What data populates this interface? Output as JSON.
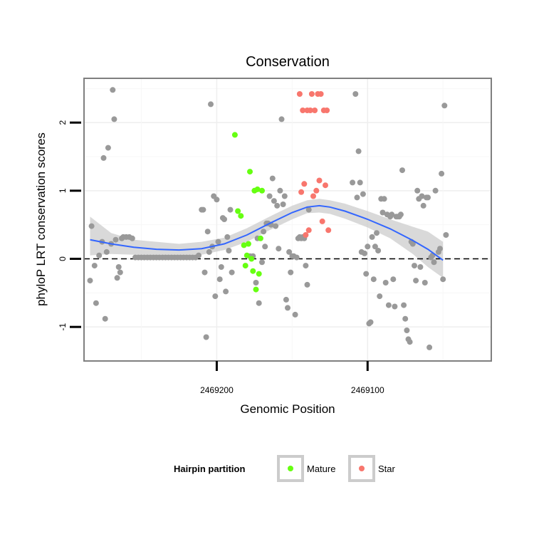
{
  "chart_data": {
    "type": "scatter",
    "title": "Conservation",
    "xlabel": "Genomic Position",
    "ylabel": "phyloP LRT conservation scores",
    "x_reversed": true,
    "xlim": [
      2469288,
      2469018
    ],
    "ylim": [
      -1.5,
      2.65
    ],
    "x_ticks": [
      {
        "value": 2469200,
        "label": "2469200"
      },
      {
        "value": 2469100,
        "label": "2469100"
      }
    ],
    "y_ticks": [
      {
        "value": -1,
        "label": "-1"
      },
      {
        "value": 0,
        "label": "0"
      },
      {
        "value": 1,
        "label": "1"
      },
      {
        "value": 2,
        "label": "2"
      }
    ],
    "grid": true,
    "reference_line": {
      "y": 0,
      "style": "dashed"
    },
    "legend": {
      "title": "Hairpin partition",
      "position": "bottom",
      "entries": [
        {
          "label": "Mature",
          "color": "#66ff11"
        },
        {
          "label": "Star",
          "color": "#f8766d"
        }
      ]
    },
    "colors": {
      "other": "#999999",
      "mature": "#66ff11",
      "star": "#f8766d",
      "smooth": "#3366ff",
      "band": "#cccccc"
    },
    "series": [
      {
        "key": "other",
        "points": [
          [
            2469284,
            -0.32
          ],
          [
            2469283,
            0.48
          ],
          [
            2469281,
            -0.1
          ],
          [
            2469280,
            -0.65
          ],
          [
            2469278,
            0.05
          ],
          [
            2469276,
            0.25
          ],
          [
            2469275,
            1.48
          ],
          [
            2469274,
            -0.88
          ],
          [
            2469273,
            0.1
          ],
          [
            2469272,
            1.63
          ],
          [
            2469270,
            0.22
          ],
          [
            2469269,
            2.48
          ],
          [
            2469268,
            2.05
          ],
          [
            2469267,
            0.28
          ],
          [
            2469266,
            -0.28
          ],
          [
            2469265,
            -0.12
          ],
          [
            2469264,
            -0.2
          ],
          [
            2469263,
            0.3
          ],
          [
            2469262,
            0.32
          ],
          [
            2469260,
            0.32
          ],
          [
            2469258,
            0.32
          ],
          [
            2469256,
            0.3
          ],
          [
            2469254,
            0.02
          ],
          [
            2469252,
            0.02
          ],
          [
            2469250,
            0.02
          ],
          [
            2469248,
            0.02
          ],
          [
            2469246,
            0.02
          ],
          [
            2469244,
            0.02
          ],
          [
            2469242,
            0.02
          ],
          [
            2469240,
            0.02
          ],
          [
            2469238,
            0.02
          ],
          [
            2469236,
            0.02
          ],
          [
            2469234,
            0.02
          ],
          [
            2469232,
            0.02
          ],
          [
            2469230,
            0.02
          ],
          [
            2469228,
            0.02
          ],
          [
            2469226,
            0.02
          ],
          [
            2469224,
            0.02
          ],
          [
            2469222,
            0.02
          ],
          [
            2469220,
            0.02
          ],
          [
            2469218,
            0.02
          ],
          [
            2469216,
            0.02
          ],
          [
            2469214,
            0.02
          ],
          [
            2469212,
            0.05
          ],
          [
            2469210,
            0.72
          ],
          [
            2469209,
            0.72
          ],
          [
            2469208,
            -0.2
          ],
          [
            2469207,
            -1.15
          ],
          [
            2469206,
            0.4
          ],
          [
            2469205,
            0.1
          ],
          [
            2469204,
            2.27
          ],
          [
            2469203,
            0.18
          ],
          [
            2469202,
            0.92
          ],
          [
            2469201,
            -0.55
          ],
          [
            2469200,
            0.87
          ],
          [
            2469199,
            0.25
          ],
          [
            2469198,
            -0.3
          ],
          [
            2469197,
            -0.12
          ],
          [
            2469196,
            0.6
          ],
          [
            2469195,
            0.58
          ],
          [
            2469194,
            -0.48
          ],
          [
            2469193,
            0.32
          ],
          [
            2469192,
            0.12
          ],
          [
            2469191,
            0.72
          ],
          [
            2469190,
            -0.2
          ],
          [
            2469178,
            0.04
          ],
          [
            2469176,
            0.04
          ],
          [
            2469174,
            -0.35
          ],
          [
            2469173,
            0.3
          ],
          [
            2469172,
            -0.65
          ],
          [
            2469170,
            -0.05
          ],
          [
            2469169,
            0.4
          ],
          [
            2469168,
            0.18
          ],
          [
            2469167,
            0.52
          ],
          [
            2469166,
            0.52
          ],
          [
            2469165,
            0.92
          ],
          [
            2469164,
            0.5
          ],
          [
            2469163,
            1.18
          ],
          [
            2469162,
            0.85
          ],
          [
            2469161,
            0.48
          ],
          [
            2469160,
            0.78
          ],
          [
            2469159,
            0.15
          ],
          [
            2469158,
            1.0
          ],
          [
            2469157,
            2.05
          ],
          [
            2469156,
            0.8
          ],
          [
            2469155,
            0.92
          ],
          [
            2469154,
            -0.6
          ],
          [
            2469153,
            -0.72
          ],
          [
            2469152,
            0.1
          ],
          [
            2469151,
            -0.2
          ],
          [
            2469150,
            0.04
          ],
          [
            2469149,
            0.04
          ],
          [
            2469148,
            -0.82
          ],
          [
            2469147,
            0.02
          ],
          [
            2469146,
            0.3
          ],
          [
            2469145,
            0.32
          ],
          [
            2469144,
            0.3
          ],
          [
            2469143,
            0.32
          ],
          [
            2469142,
            0.3
          ],
          [
            2469141,
            -0.1
          ],
          [
            2469140,
            -0.38
          ],
          [
            2469139,
            0.72
          ],
          [
            2469110,
            1.12
          ],
          [
            2469108,
            2.42
          ],
          [
            2469107,
            0.9
          ],
          [
            2469106,
            1.58
          ],
          [
            2469105,
            1.12
          ],
          [
            2469104,
            0.1
          ],
          [
            2469103,
            0.95
          ],
          [
            2469102,
            0.08
          ],
          [
            2469101,
            -0.22
          ],
          [
            2469100,
            0.18
          ],
          [
            2469099,
            -0.95
          ],
          [
            2469098,
            -0.93
          ],
          [
            2469097,
            0.32
          ],
          [
            2469096,
            -0.3
          ],
          [
            2469095,
            0.18
          ],
          [
            2469094,
            0.38
          ],
          [
            2469093,
            0.12
          ],
          [
            2469092,
            -0.55
          ],
          [
            2469091,
            0.88
          ],
          [
            2469090,
            0.68
          ],
          [
            2469089,
            0.88
          ],
          [
            2469088,
            -0.35
          ],
          [
            2469087,
            0.65
          ],
          [
            2469086,
            -0.68
          ],
          [
            2469085,
            0.62
          ],
          [
            2469084,
            0.65
          ],
          [
            2469083,
            -0.3
          ],
          [
            2469082,
            -0.7
          ],
          [
            2469081,
            0.62
          ],
          [
            2469080,
            0.62
          ],
          [
            2469079,
            0.62
          ],
          [
            2469078,
            0.65
          ],
          [
            2469077,
            1.3
          ],
          [
            2469076,
            -0.68
          ],
          [
            2469075,
            -0.88
          ],
          [
            2469074,
            -1.05
          ],
          [
            2469073,
            -1.18
          ],
          [
            2469072,
            -1.22
          ],
          [
            2469071,
            0.25
          ],
          [
            2469070,
            0.22
          ],
          [
            2469069,
            -0.1
          ],
          [
            2469068,
            -0.32
          ],
          [
            2469067,
            1.0
          ],
          [
            2469066,
            0.88
          ],
          [
            2469065,
            -0.12
          ],
          [
            2469064,
            0.92
          ],
          [
            2469063,
            0.78
          ],
          [
            2469062,
            -0.35
          ],
          [
            2469061,
            0.9
          ],
          [
            2469060,
            0.9
          ],
          [
            2469059,
            -1.3
          ],
          [
            2469058,
            0.02
          ],
          [
            2469057,
            0.05
          ],
          [
            2469056,
            -0.05
          ],
          [
            2469055,
            1.0
          ],
          [
            2469053,
            0.1
          ],
          [
            2469052,
            0.15
          ],
          [
            2469051,
            1.25
          ],
          [
            2469050,
            -0.3
          ],
          [
            2469049,
            2.25
          ],
          [
            2469048,
            0.35
          ]
        ]
      },
      {
        "key": "mature",
        "points": [
          [
            2469188,
            1.82
          ],
          [
            2469186,
            0.7
          ],
          [
            2469184,
            0.63
          ],
          [
            2469182,
            0.2
          ],
          [
            2469181,
            -0.1
          ],
          [
            2469180,
            0.05
          ],
          [
            2469179,
            0.22
          ],
          [
            2469178,
            1.28
          ],
          [
            2469177,
            0.0
          ],
          [
            2469176,
            -0.18
          ],
          [
            2469175,
            1.0
          ],
          [
            2469174,
            -0.45
          ],
          [
            2469173,
            1.02
          ],
          [
            2469172,
            -0.22
          ],
          [
            2469171,
            0.3
          ],
          [
            2469170,
            1.0
          ]
        ]
      },
      {
        "key": "star",
        "points": [
          [
            2469126,
            0.42
          ],
          [
            2469127,
            2.18
          ],
          [
            2469128,
            1.08
          ],
          [
            2469129,
            2.18
          ],
          [
            2469130,
            0.55
          ],
          [
            2469131,
            2.42
          ],
          [
            2469132,
            1.15
          ],
          [
            2469133,
            2.42
          ],
          [
            2469134,
            1.0
          ],
          [
            2469135,
            2.18
          ],
          [
            2469136,
            0.92
          ],
          [
            2469137,
            2.42
          ],
          [
            2469138,
            2.18
          ],
          [
            2469139,
            0.42
          ],
          [
            2469140,
            2.18
          ],
          [
            2469141,
            0.35
          ],
          [
            2469142,
            1.1
          ],
          [
            2469143,
            2.18
          ],
          [
            2469144,
            0.98
          ],
          [
            2469145,
            2.42
          ]
        ]
      }
    ],
    "smooth": {
      "x": [
        2469284,
        2469270,
        2469255,
        2469240,
        2469225,
        2469210,
        2469195,
        2469180,
        2469165,
        2469150,
        2469140,
        2469132,
        2469125,
        2469115,
        2469100,
        2469085,
        2469070,
        2469060,
        2469050
      ],
      "y": [
        0.28,
        0.22,
        0.17,
        0.14,
        0.13,
        0.15,
        0.22,
        0.35,
        0.52,
        0.68,
        0.76,
        0.78,
        0.76,
        0.7,
        0.58,
        0.44,
        0.27,
        0.14,
        -0.02
      ],
      "lower": [
        0.05,
        0.07,
        0.06,
        0.04,
        0.04,
        0.06,
        0.13,
        0.25,
        0.42,
        0.58,
        0.67,
        0.68,
        0.66,
        0.59,
        0.46,
        0.3,
        0.07,
        -0.12,
        -0.28
      ],
      "upper": [
        0.62,
        0.38,
        0.28,
        0.25,
        0.22,
        0.25,
        0.31,
        0.45,
        0.62,
        0.78,
        0.86,
        0.88,
        0.86,
        0.81,
        0.7,
        0.58,
        0.47,
        0.4,
        0.25
      ]
    }
  }
}
